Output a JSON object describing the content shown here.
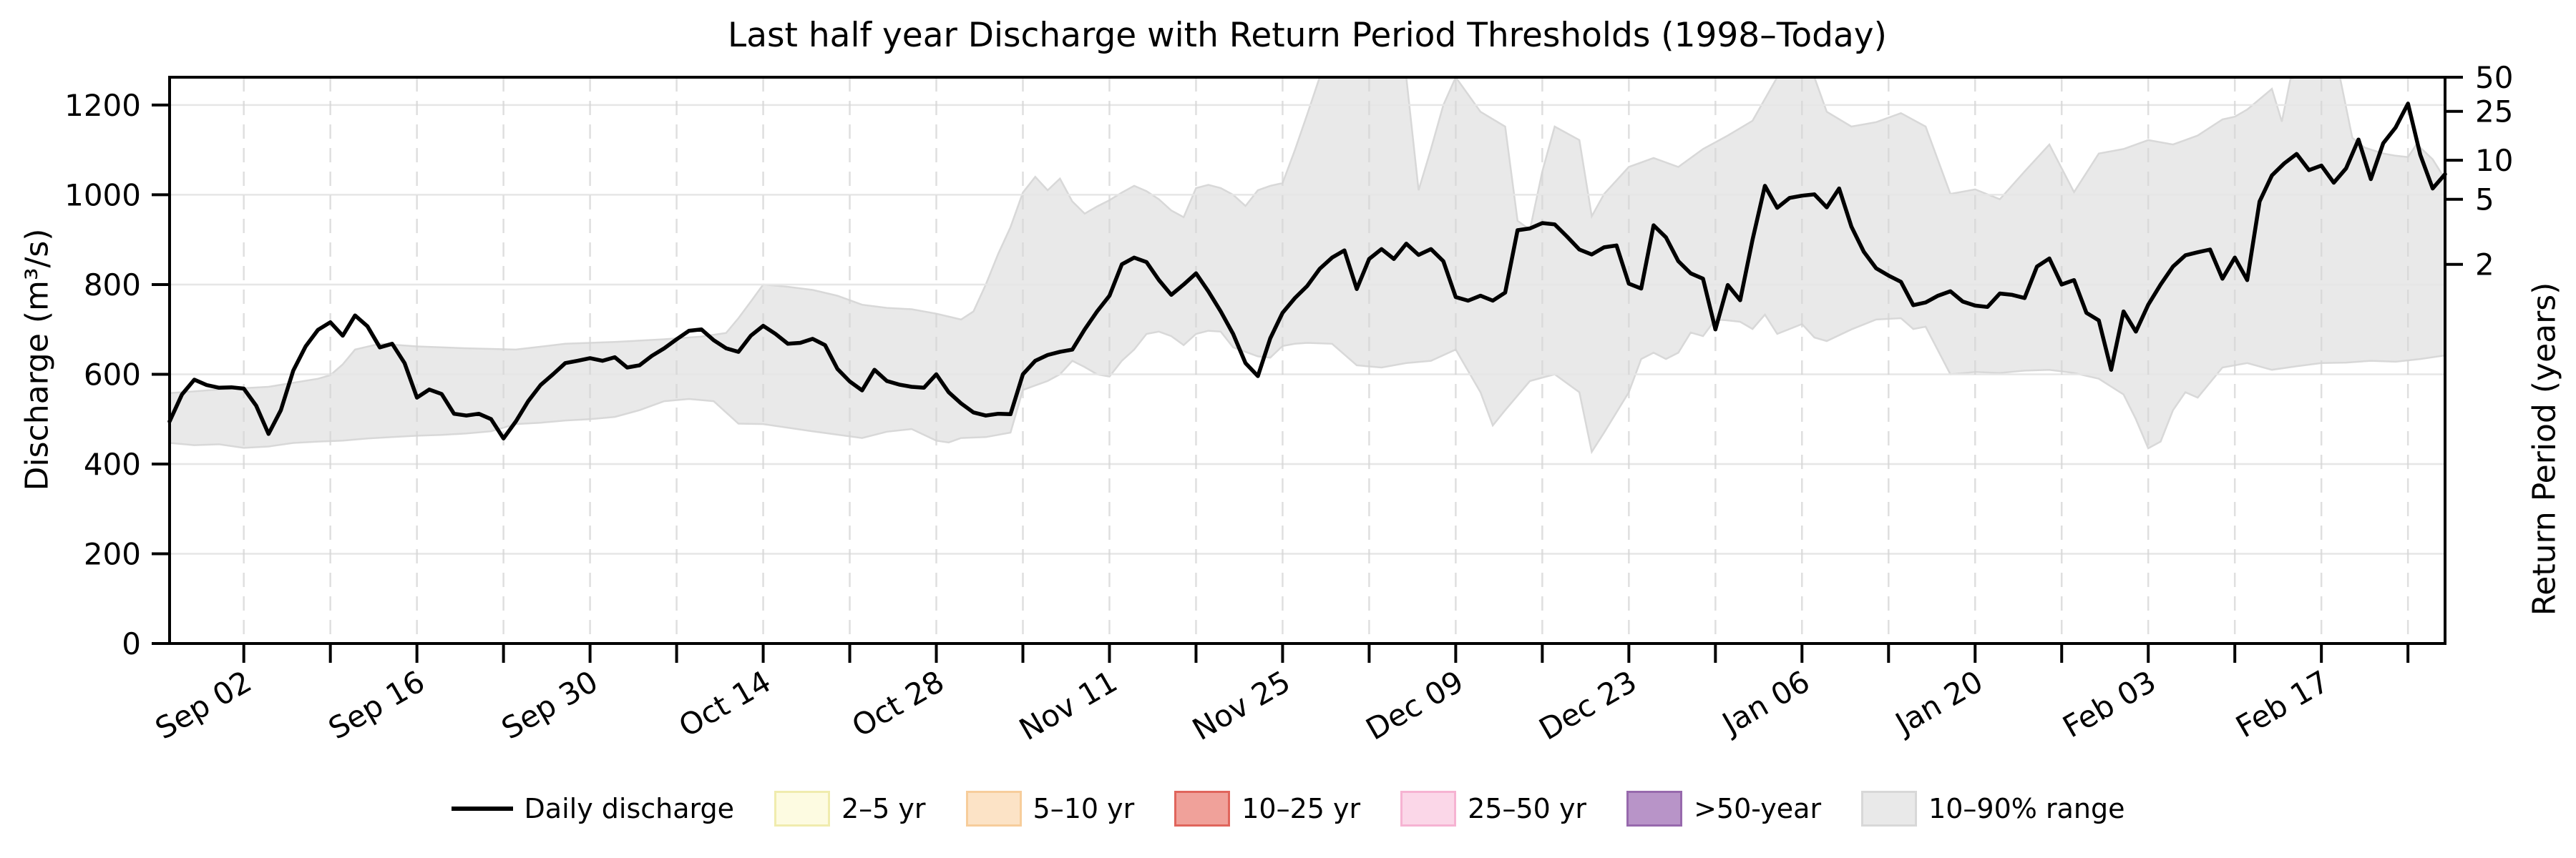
{
  "title": "Last half year Discharge with Return Period Thresholds (1998–Today)",
  "axes": {
    "y_left": {
      "label": "Discharge (m³/s)",
      "ticks": [
        0,
        200,
        400,
        600,
        800,
        1000,
        1200
      ],
      "ylim": [
        0,
        1262
      ]
    },
    "y_right": {
      "label": "Return Period (years)",
      "ticks": [
        {
          "label": "50",
          "discharge": 1263
        },
        {
          "label": "25",
          "discharge": 1186
        },
        {
          "label": "10",
          "discharge": 1077
        },
        {
          "label": "5",
          "discharge": 990
        },
        {
          "label": "2",
          "discharge": 845
        }
      ]
    },
    "x": {
      "tick_labels": [
        {
          "label": "Sep 02",
          "day": 6
        },
        {
          "label": "Sep 16",
          "day": 20
        },
        {
          "label": "Sep 30",
          "day": 34
        },
        {
          "label": "Oct 14",
          "day": 48
        },
        {
          "label": "Oct 28",
          "day": 62
        },
        {
          "label": "Nov 11",
          "day": 76
        },
        {
          "label": "Nov 25",
          "day": 90
        },
        {
          "label": "Dec 09",
          "day": 104
        },
        {
          "label": "Dec 23",
          "day": 118
        },
        {
          "label": "Jan 06",
          "day": 132
        },
        {
          "label": "Jan 20",
          "day": 146
        },
        {
          "label": "Feb 03",
          "day": 160
        },
        {
          "label": "Feb 17",
          "day": 174
        }
      ],
      "minor_tick_every_days": 7,
      "rotation_deg": -30
    }
  },
  "legend": {
    "items": [
      {
        "label": "Daily discharge",
        "type": "line",
        "color": "#000000"
      },
      {
        "label": "2–5 yr",
        "type": "patch",
        "fill": "#fdfbe1",
        "edge": "#f0ecae"
      },
      {
        "label": "5–10 yr",
        "type": "patch",
        "fill": "#fce3c6",
        "edge": "#f7cd9b"
      },
      {
        "label": "10–25 yr",
        "type": "patch",
        "fill": "#f0a19a",
        "edge": "#e0655c"
      },
      {
        "label": "25–50 yr",
        "type": "patch",
        "fill": "#fbd7e8",
        "edge": "#f6b3d2"
      },
      {
        "label": ">50-year",
        "type": "patch",
        "fill": "#b894c8",
        "edge": "#9769ad"
      },
      {
        "label": "10–90% range",
        "type": "patch",
        "fill": "#e9e9e9",
        "edge": "#d8d8d8"
      }
    ]
  },
  "chart_data": {
    "type": "line",
    "title": "Last half year Discharge with Return Period Thresholds (1998–Today)",
    "xlabel": "",
    "ylabel": "Discharge (m³/s)",
    "y2label": "Return Period (years)",
    "x_axis": {
      "start_date": "Aug 27",
      "end_date": "Feb 27",
      "unit": "day_index",
      "span_days": 184
    },
    "ylim": [
      0,
      1262
    ],
    "grid": {
      "horizontal": "solid",
      "vertical": "weekly dashed"
    },
    "legend_position": "bottom center",
    "return_period_thresholds_m3s": {
      "2_yr": 845,
      "5_yr": 990,
      "10_yr": 1077,
      "25_yr": 1186,
      "50_yr": 1263
    },
    "series": [
      {
        "name": "Daily discharge",
        "color": "#000000",
        "sampling": "daily",
        "start_day_index": 0,
        "values": [
          495,
          555,
          588,
          576,
          570,
          571,
          568,
          530,
          467,
          520,
          608,
          662,
          699,
          716,
          686,
          731,
          707,
          660,
          668,
          625,
          548,
          566,
          556,
          512,
          508,
          512,
          500,
          457,
          495,
          540,
          576,
          600,
          625,
          630,
          636,
          630,
          638,
          615,
          620,
          641,
          658,
          678,
          697,
          700,
          676,
          658,
          650,
          686,
          708,
          690,
          668,
          670,
          679,
          665,
          612,
          584,
          564,
          610,
          585,
          577,
          572,
          570,
          600,
          560,
          535,
          515,
          508,
          512,
          511,
          600,
          630,
          643,
          650,
          655,
          700,
          740,
          775,
          845,
          860,
          850,
          810,
          777,
          800,
          825,
          785,
          740,
          690,
          625,
          596,
          680,
          737,
          770,
          797,
          835,
          860,
          876,
          790,
          857,
          879,
          857,
          891,
          866,
          879,
          852,
          772,
          764,
          775,
          764,
          782,
          921,
          925,
          937,
          934,
          907,
          878,
          867,
          883,
          887,
          802,
          791,
          932,
          905,
          852,
          825,
          813,
          700,
          799,
          765,
          900,
          1020,
          971,
          993,
          998,
          1001,
          972,
          1014,
          929,
          873,
          836,
          820,
          806,
          754,
          760,
          775,
          785,
          762,
          753,
          750,
          780,
          777,
          770,
          840,
          858,
          800,
          810,
          737,
          720,
          610,
          740,
          695,
          755,
          800,
          840,
          865,
          872,
          878,
          813,
          860,
          810,
          985,
          1043,
          1070,
          1091,
          1055,
          1065,
          1027,
          1059,
          1123,
          1035,
          1115,
          1150,
          1203,
          1089,
          1014,
          1046
        ]
      }
    ],
    "band_10_90_range": {
      "name": "10–90% range",
      "fill": "#e9e9e9",
      "edge": "#d8d8d8",
      "p90_points": [
        [
          0,
          558
        ],
        [
          4,
          566
        ],
        [
          8,
          572
        ],
        [
          12,
          590
        ],
        [
          13,
          598
        ],
        [
          14,
          622
        ],
        [
          15,
          655
        ],
        [
          17,
          668
        ],
        [
          20,
          662
        ],
        [
          24,
          658
        ],
        [
          28,
          655
        ],
        [
          32,
          668
        ],
        [
          36,
          672
        ],
        [
          40,
          678
        ],
        [
          43,
          684
        ],
        [
          45,
          692
        ],
        [
          46,
          725
        ],
        [
          47,
          762
        ],
        [
          48,
          800
        ],
        [
          50,
          795
        ],
        [
          52,
          788
        ],
        [
          54,
          775
        ],
        [
          56,
          755
        ],
        [
          58,
          748
        ],
        [
          60,
          745
        ],
        [
          62,
          735
        ],
        [
          64,
          722
        ],
        [
          65,
          740
        ],
        [
          66,
          800
        ],
        [
          67,
          868
        ],
        [
          68,
          928
        ],
        [
          69,
          1005
        ],
        [
          70,
          1040
        ],
        [
          71,
          1010
        ],
        [
          72,
          1036
        ],
        [
          73,
          985
        ],
        [
          74,
          958
        ],
        [
          75,
          974
        ],
        [
          76,
          988
        ],
        [
          77,
          1005
        ],
        [
          78,
          1020
        ],
        [
          79,
          1008
        ],
        [
          80,
          990
        ],
        [
          81,
          965
        ],
        [
          82,
          950
        ],
        [
          83,
          1015
        ],
        [
          84,
          1022
        ],
        [
          85,
          1015
        ],
        [
          86,
          1000
        ],
        [
          87,
          975
        ],
        [
          88,
          1010
        ],
        [
          89,
          1020
        ],
        [
          90,
          1026
        ],
        [
          91,
          1100
        ],
        [
          92,
          1180
        ],
        [
          93,
          1262
        ],
        [
          100,
          1262
        ],
        [
          101,
          1010
        ],
        [
          102,
          1102
        ],
        [
          103,
          1200
        ],
        [
          104,
          1262
        ],
        [
          106,
          1185
        ],
        [
          108,
          1152
        ],
        [
          109,
          942
        ],
        [
          110,
          922
        ],
        [
          111,
          1052
        ],
        [
          112,
          1152
        ],
        [
          114,
          1122
        ],
        [
          115,
          952
        ],
        [
          116,
          1002
        ],
        [
          118,
          1062
        ],
        [
          120,
          1082
        ],
        [
          122,
          1062
        ],
        [
          124,
          1102
        ],
        [
          126,
          1132
        ],
        [
          128,
          1165
        ],
        [
          130,
          1262
        ],
        [
          133,
          1262
        ],
        [
          134,
          1185
        ],
        [
          136,
          1152
        ],
        [
          138,
          1162
        ],
        [
          140,
          1182
        ],
        [
          142,
          1152
        ],
        [
          144,
          1002
        ],
        [
          146,
          1012
        ],
        [
          148,
          990
        ],
        [
          150,
          1052
        ],
        [
          152,
          1112
        ],
        [
          154,
          1006
        ],
        [
          156,
          1092
        ],
        [
          158,
          1102
        ],
        [
          160,
          1122
        ],
        [
          162,
          1112
        ],
        [
          164,
          1132
        ],
        [
          166,
          1168
        ],
        [
          167,
          1174
        ],
        [
          168,
          1190
        ],
        [
          170,
          1236
        ],
        [
          170.8,
          1163
        ],
        [
          171.5,
          1259
        ],
        [
          172,
          1262
        ],
        [
          175.5,
          1262
        ],
        [
          176.5,
          1127
        ],
        [
          177.5,
          1105
        ],
        [
          179,
          1092
        ],
        [
          180,
          1087
        ],
        [
          181,
          1084
        ],
        [
          181.7,
          1113
        ],
        [
          183,
          1079
        ],
        [
          184,
          1035
        ]
      ],
      "p10_points": [
        [
          0,
          447
        ],
        [
          2,
          442
        ],
        [
          4,
          444
        ],
        [
          6,
          436
        ],
        [
          8,
          439
        ],
        [
          10,
          447
        ],
        [
          12,
          450
        ],
        [
          14,
          452
        ],
        [
          16,
          457
        ],
        [
          18,
          460
        ],
        [
          20,
          463
        ],
        [
          22,
          465
        ],
        [
          24,
          468
        ],
        [
          26,
          473
        ],
        [
          28,
          489
        ],
        [
          30,
          492
        ],
        [
          32,
          497
        ],
        [
          34,
          500
        ],
        [
          36,
          505
        ],
        [
          38,
          520
        ],
        [
          40,
          540
        ],
        [
          42,
          545
        ],
        [
          44,
          540
        ],
        [
          46,
          490
        ],
        [
          48,
          489
        ],
        [
          52,
          473
        ],
        [
          56,
          458
        ],
        [
          58,
          472
        ],
        [
          60,
          478
        ],
        [
          62,
          452
        ],
        [
          63,
          448
        ],
        [
          64,
          458
        ],
        [
          66,
          460
        ],
        [
          68,
          470
        ],
        [
          69,
          565
        ],
        [
          70,
          575
        ],
        [
          71,
          585
        ],
        [
          72,
          600
        ],
        [
          73,
          630
        ],
        [
          74,
          616
        ],
        [
          75,
          600
        ],
        [
          76,
          595
        ],
        [
          77,
          630
        ],
        [
          78,
          655
        ],
        [
          79,
          690
        ],
        [
          80,
          695
        ],
        [
          81,
          685
        ],
        [
          82,
          665
        ],
        [
          83,
          690
        ],
        [
          84,
          697
        ],
        [
          85,
          695
        ],
        [
          86,
          660
        ],
        [
          87,
          650
        ],
        [
          88,
          640
        ],
        [
          89,
          637
        ],
        [
          90,
          663
        ],
        [
          91,
          668
        ],
        [
          92,
          670
        ],
        [
          94,
          668
        ],
        [
          96,
          620
        ],
        [
          98,
          615
        ],
        [
          100,
          625
        ],
        [
          102,
          630
        ],
        [
          104,
          655
        ],
        [
          106,
          560
        ],
        [
          107,
          486
        ],
        [
          108,
          520
        ],
        [
          110,
          585
        ],
        [
          112,
          600
        ],
        [
          114,
          560
        ],
        [
          115,
          427
        ],
        [
          116,
          470
        ],
        [
          118,
          560
        ],
        [
          119,
          634
        ],
        [
          120,
          648
        ],
        [
          121,
          634
        ],
        [
          122,
          648
        ],
        [
          123,
          693
        ],
        [
          124,
          685
        ],
        [
          125,
          722
        ],
        [
          126,
          720
        ],
        [
          127,
          717
        ],
        [
          128,
          701
        ],
        [
          129,
          733
        ],
        [
          130,
          690
        ],
        [
          131,
          701
        ],
        [
          132,
          712
        ],
        [
          133,
          682
        ],
        [
          134,
          674
        ],
        [
          136,
          700
        ],
        [
          138,
          722
        ],
        [
          140,
          725
        ],
        [
          141,
          701
        ],
        [
          142,
          706
        ],
        [
          144,
          600
        ],
        [
          146,
          605
        ],
        [
          148,
          603
        ],
        [
          150,
          608
        ],
        [
          152,
          610
        ],
        [
          154,
          603
        ],
        [
          156,
          590
        ],
        [
          158,
          555
        ],
        [
          159,
          500
        ],
        [
          160,
          435
        ],
        [
          161,
          450
        ],
        [
          162,
          520
        ],
        [
          163,
          560
        ],
        [
          164,
          548
        ],
        [
          166,
          615
        ],
        [
          168,
          625
        ],
        [
          170,
          610
        ],
        [
          172,
          618
        ],
        [
          174,
          625
        ],
        [
          176,
          626
        ],
        [
          178,
          630
        ],
        [
          180,
          628
        ],
        [
          182,
          634
        ],
        [
          184,
          642
        ]
      ]
    }
  },
  "style": {
    "line_color": "#000000",
    "grid_h_color": "#e6e6e6",
    "grid_v_color": "#d4d4d4",
    "spine_color": "#000000",
    "band_fill": "#e9e9e9",
    "band_edge": "#d8d8d8"
  }
}
